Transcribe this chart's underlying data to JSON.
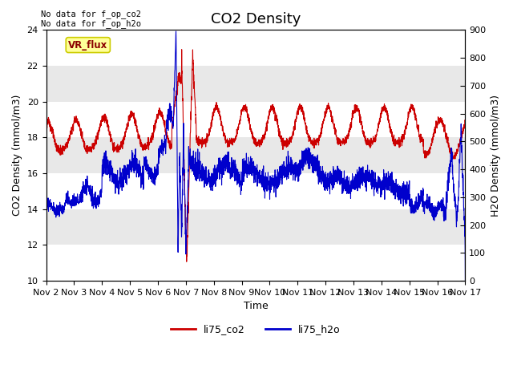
{
  "title": "CO2 Density",
  "xlabel": "Time",
  "ylabel_left": "CO2 Density (mmol/m3)",
  "ylabel_right": "H2O Density (mmol/m3)",
  "text_no_data": [
    "No data for f_op_co2",
    "No data for f_op_h2o"
  ],
  "vr_flux_label": "VR_flux",
  "legend_labels": [
    "li75_co2",
    "li75_h2o"
  ],
  "co2_color": "#cc0000",
  "h2o_color": "#0000cc",
  "background_color": "#e8e8e8",
  "ylim_left": [
    10,
    24
  ],
  "ylim_right": [
    0,
    900
  ],
  "yticks_left": [
    10,
    12,
    14,
    16,
    18,
    20,
    22,
    24
  ],
  "yticks_right": [
    0,
    100,
    200,
    300,
    400,
    500,
    600,
    700,
    800,
    900
  ],
  "xtick_labels": [
    "Nov 2",
    "Nov 3",
    "Nov 4",
    "Nov 5",
    "Nov 6",
    "Nov 7",
    "Nov 8",
    "Nov 9",
    "Nov 10",
    "Nov 11",
    "Nov 12",
    "Nov 13",
    "Nov 14",
    "Nov 15",
    "Nov 16",
    "Nov 17"
  ],
  "title_fontsize": 13,
  "label_fontsize": 9,
  "tick_fontsize": 8,
  "figsize": [
    6.4,
    4.8
  ],
  "dpi": 100
}
